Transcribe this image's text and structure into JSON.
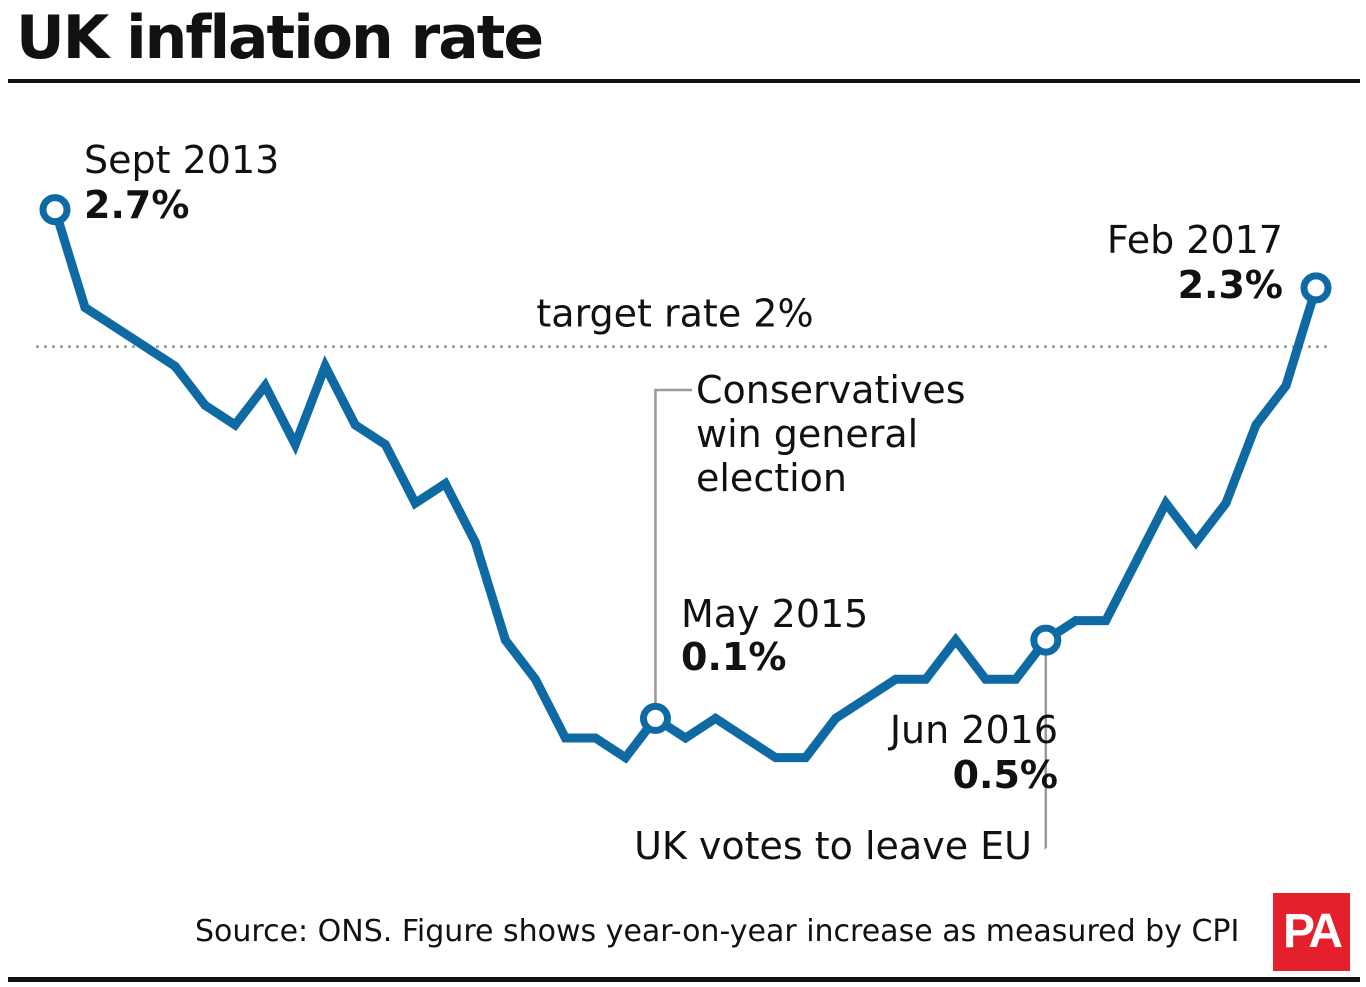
{
  "title": "UK inflation rate",
  "source": "Source: ONS. Figure shows year-on-year increase as measured by CPI",
  "logo": "PA",
  "colors": {
    "line": "#0f6aa3",
    "text": "#111111",
    "target": "#9a9a9a",
    "leader": "#9a9a9a",
    "logo_bg": "#e3202c"
  },
  "chart_data": {
    "type": "line",
    "title": "UK inflation rate",
    "xlabel": "",
    "ylabel": "",
    "unit": "%",
    "grid": false,
    "x_start": "Sept 2013",
    "x_end": "Feb 2017",
    "values": [
      2.7,
      2.2,
      2.1,
      2.0,
      1.9,
      1.7,
      1.6,
      1.8,
      1.5,
      1.9,
      1.6,
      1.5,
      1.2,
      1.3,
      1.0,
      0.5,
      0.3,
      0.0,
      0.0,
      -0.1,
      0.1,
      0.0,
      0.1,
      0.0,
      -0.1,
      -0.1,
      0.1,
      0.2,
      0.3,
      0.3,
      0.5,
      0.3,
      0.3,
      0.5,
      0.6,
      0.6,
      0.9,
      1.2,
      1.0,
      1.2,
      1.6,
      1.8,
      2.3
    ],
    "target": {
      "value": 2.0,
      "label": "target rate 2%"
    },
    "markers": [
      {
        "index": 0,
        "date": "Sept 2013",
        "value": "2.7%"
      },
      {
        "index": 20,
        "date": "May 2015",
        "value": "0.1%"
      },
      {
        "index": 33,
        "date": "Jun 2016",
        "value": "0.5%"
      },
      {
        "index": 42,
        "date": "Feb 2017",
        "value": "2.3%"
      }
    ],
    "annotations": [
      {
        "index": 20,
        "lines": [
          "Conservatives",
          "win general",
          "election"
        ]
      },
      {
        "index": 33,
        "lines": [
          "UK votes to leave EU"
        ]
      }
    ]
  }
}
